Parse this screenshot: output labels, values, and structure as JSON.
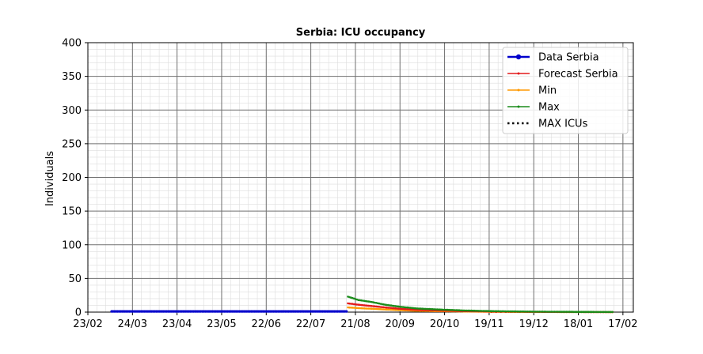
{
  "chart_data": {
    "type": "line",
    "title": "Serbia: ICU occupancy",
    "xlabel": "",
    "ylabel": "Individuals",
    "xlim": [
      "2020-02-23",
      "2021-02-24"
    ],
    "ylim": [
      0,
      400
    ],
    "x_ticks": [
      "23/02",
      "24/03",
      "23/04",
      "23/05",
      "22/06",
      "22/07",
      "21/08",
      "20/09",
      "20/10",
      "19/11",
      "19/12",
      "18/01",
      "17/02"
    ],
    "y_ticks": [
      0,
      50,
      100,
      150,
      200,
      250,
      300,
      350,
      400
    ],
    "grid": true,
    "legend_position": "top-right",
    "series": [
      {
        "name": "Data Serbia",
        "color": "#0000cc",
        "start": "2020-03-10",
        "end": "2020-08-15",
        "x": [
          "2020-03-10",
          "2020-04-15",
          "2020-06-01",
          "2020-07-15",
          "2020-08-15"
        ],
        "y": [
          1,
          1,
          1,
          1,
          1
        ]
      },
      {
        "name": "Forecast Serbia",
        "color": "#e31a1c",
        "start": "2020-08-16",
        "end": "2021-02-10",
        "x": [
          "2020-08-16",
          "2020-08-23",
          "2020-09-01",
          "2020-09-10",
          "2020-09-20",
          "2020-10-01",
          "2020-10-15",
          "2020-11-01",
          "2020-11-20",
          "2020-12-15",
          "2021-01-15",
          "2021-02-10"
        ],
        "y": [
          13,
          11,
          9,
          7,
          5,
          3.5,
          2.5,
          1.5,
          1,
          0.5,
          0.2,
          0.1
        ]
      },
      {
        "name": "Min",
        "color": "#ff9900",
        "start": "2020-08-16",
        "end": "2021-02-10",
        "x": [
          "2020-08-16",
          "2020-08-23",
          "2020-09-01",
          "2020-09-10",
          "2020-09-20",
          "2020-10-01",
          "2020-10-15",
          "2020-11-01",
          "2020-11-20",
          "2020-12-15",
          "2021-01-15",
          "2021-02-10"
        ],
        "y": [
          7,
          6,
          5,
          4,
          3,
          2,
          1.5,
          1,
          0.5,
          0.3,
          0.1,
          0.05
        ]
      },
      {
        "name": "Max",
        "color": "#1a8c1a",
        "start": "2020-08-16",
        "end": "2021-02-10",
        "x": [
          "2020-08-16",
          "2020-08-23",
          "2020-09-01",
          "2020-09-10",
          "2020-09-20",
          "2020-10-01",
          "2020-10-15",
          "2020-11-01",
          "2020-11-20",
          "2020-12-15",
          "2021-01-15",
          "2021-02-10"
        ],
        "y": [
          23,
          18,
          15,
          11,
          8,
          5.5,
          4,
          2.5,
          1.5,
          0.8,
          0.4,
          0.2
        ]
      },
      {
        "name": "MAX ICUs",
        "color": "#000000",
        "start": "2020-11-20",
        "end": "2021-02-10",
        "x": [
          "2020-11-20",
          "2021-02-10"
        ],
        "y": [
          0,
          0
        ]
      }
    ]
  }
}
